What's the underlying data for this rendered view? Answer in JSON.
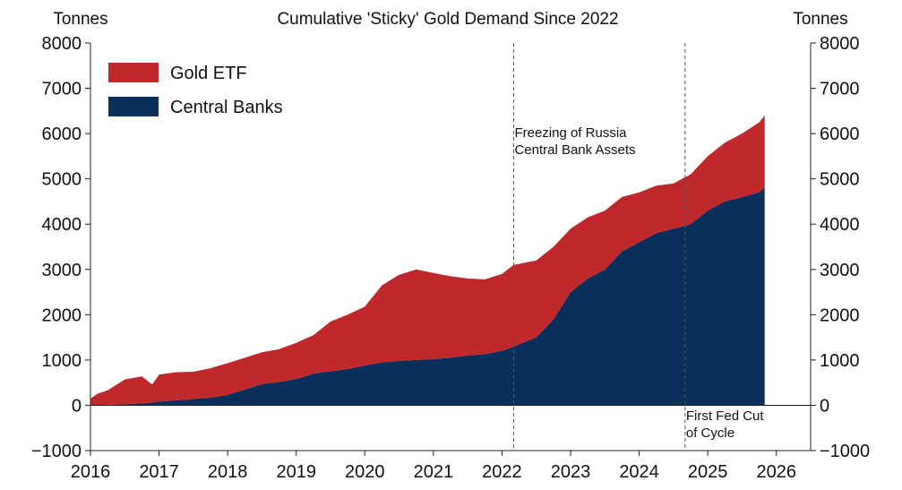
{
  "chart_data": {
    "type": "area",
    "title": "Cumulative 'Sticky' Gold Demand Since 2022",
    "y_unit_left": "Tonnes",
    "y_unit_right": "Tonnes",
    "xlim": [
      2016,
      2026.5
    ],
    "ylim": [
      -1000,
      8000
    ],
    "x_ticks": [
      "2016",
      "2017",
      "2018",
      "2019",
      "2020",
      "2021",
      "2022",
      "2023",
      "2024",
      "2025",
      "2026"
    ],
    "y_ticks": [
      "-1000",
      "0",
      "1000",
      "2000",
      "3000",
      "4000",
      "5000",
      "6000",
      "7000",
      "8000"
    ],
    "legend_position": "top-left",
    "stacked": true,
    "x": [
      2016.0,
      2016.1,
      2016.25,
      2016.5,
      2016.75,
      2016.9,
      2017.0,
      2017.25,
      2017.5,
      2017.75,
      2018.0,
      2018.25,
      2018.5,
      2018.75,
      2019.0,
      2019.25,
      2019.5,
      2019.75,
      2020.0,
      2020.25,
      2020.5,
      2020.75,
      2021.0,
      2021.25,
      2021.5,
      2021.75,
      2022.0,
      2022.17,
      2022.5,
      2022.75,
      2023.0,
      2023.25,
      2023.5,
      2023.75,
      2024.0,
      2024.25,
      2024.5,
      2024.75,
      2025.0,
      2025.25,
      2025.5,
      2025.75,
      2025.83
    ],
    "series": [
      {
        "name": "Central Banks",
        "color": "#0b2f5b",
        "values": [
          0,
          5,
          10,
          20,
          40,
          60,
          80,
          110,
          140,
          170,
          230,
          350,
          470,
          520,
          580,
          700,
          750,
          800,
          880,
          950,
          980,
          1000,
          1020,
          1050,
          1100,
          1130,
          1200,
          1300,
          1500,
          1900,
          2500,
          2800,
          3000,
          3400,
          3600,
          3800,
          3900,
          4000,
          4300,
          4500,
          4600,
          4700,
          4820
        ]
      },
      {
        "name": "Gold ETF",
        "color": "#c0282b",
        "values": [
          150,
          250,
          320,
          550,
          600,
          400,
          600,
          620,
          600,
          650,
          700,
          700,
          700,
          720,
          800,
          850,
          1100,
          1200,
          1300,
          1700,
          1900,
          2000,
          1900,
          1800,
          1700,
          1650,
          1700,
          1800,
          1700,
          1600,
          1400,
          1350,
          1300,
          1200,
          1100,
          1050,
          1000,
          1100,
          1200,
          1300,
          1400,
          1550,
          1580
        ]
      }
    ],
    "events": [
      {
        "x": 2022.17,
        "label_lines": [
          "Freezing of Russia",
          "Central Bank Assets"
        ],
        "label_anchor": "top"
      },
      {
        "x": 2024.67,
        "label_lines": [
          "First Fed Cut",
          "of Cycle"
        ],
        "label_anchor": "bottom"
      }
    ]
  }
}
